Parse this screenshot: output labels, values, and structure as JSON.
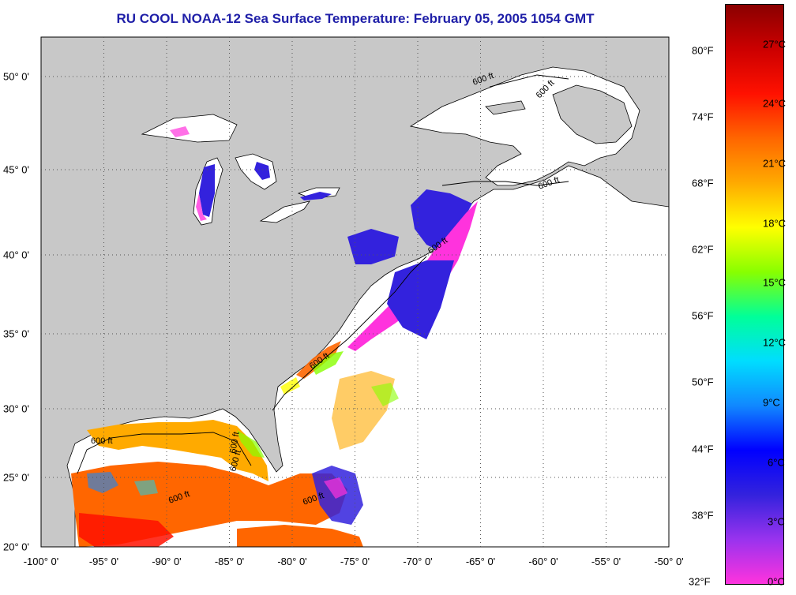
{
  "title": "RU COOL  NOAA-12  Sea Surface Temperature:  February 05, 2005 1054 GMT",
  "map": {
    "lon_range": [
      -100,
      -50
    ],
    "lat_range": [
      20,
      52
    ],
    "grid": true,
    "land_color": "#c8c8c8",
    "no_data_color": "#ffffff",
    "lon_labels": [
      "-100° 0'",
      "-95° 0'",
      "-90° 0'",
      "-85° 0'",
      "-80° 0'",
      "-75° 0'",
      "-70° 0'",
      "-65° 0'",
      "-60° 0'",
      "-55° 0'",
      "-50° 0'"
    ],
    "lat_labels": [
      "20° 0'",
      "25° 0'",
      "30° 0'",
      "35° 0'",
      "40° 0'",
      "45° 0'",
      "50° 0'"
    ],
    "isobath_labels": [
      "600 ft",
      "600 ft",
      "600 ft",
      "600 ft",
      "600 ft",
      "600 ft",
      "600 ft",
      "600 ft",
      "600 ft",
      "600 ft"
    ]
  },
  "colorbar": {
    "fahrenheit_labels": [
      "80°F",
      "74°F",
      "68°F",
      "62°F",
      "56°F",
      "50°F",
      "44°F",
      "38°F",
      "32°F"
    ],
    "celsius_labels": [
      "27°C",
      "24°C",
      "21°C",
      "18°C",
      "15°C",
      "12°C",
      "9°C",
      "6°C",
      "3°C",
      "0°C"
    ],
    "colors": [
      "#ff33dd",
      "#9933ee",
      "#3322dd",
      "#0000ff",
      "#1188ff",
      "#00ddff",
      "#00ff99",
      "#88ff00",
      "#ffff00",
      "#ffaa00",
      "#ff6600",
      "#ff1100",
      "#cc0000",
      "#8a0000"
    ]
  }
}
